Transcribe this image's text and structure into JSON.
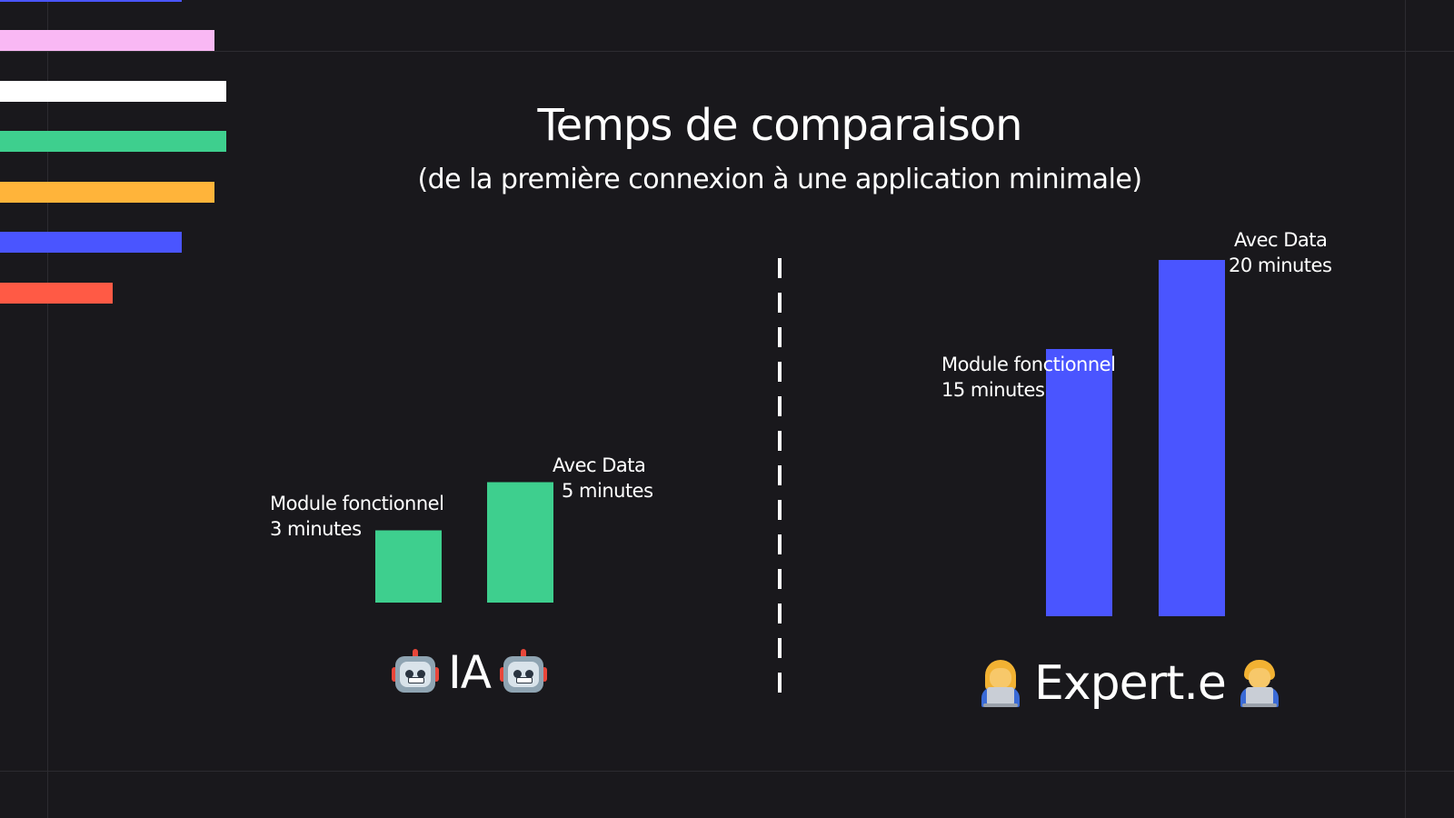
{
  "title": "Temps de comparaison",
  "subtitle": "(de la première connexion à une application minimale)",
  "colors": {
    "background": "#19181c",
    "ia_bar": "#3ecf8e",
    "expert_bar": "#4a55ff",
    "stripes": [
      "#4a55ff",
      "#f9b8f4",
      "#ffffff",
      "#3ecf8e",
      "#ffb43a",
      "#4a55ff",
      "#ff5a45"
    ]
  },
  "chart_data": [
    {
      "type": "bar",
      "group": "IA",
      "icon": "robot-icon",
      "categories": [
        "Module fonctionnel",
        "Avec Data"
      ],
      "values": [
        3,
        5
      ],
      "unit": "minutes",
      "labels": [
        [
          "Module fonctionnel",
          "3 minutes"
        ],
        [
          "Avec Data",
          "5 minutes"
        ]
      ],
      "color": "#3ecf8e"
    },
    {
      "type": "bar",
      "group": "Expert.e",
      "icon": "technologist-icon",
      "categories": [
        "Module fonctionnel",
        "Avec Data"
      ],
      "values": [
        15,
        20
      ],
      "unit": "minutes",
      "labels": [
        [
          "Module fonctionnel",
          "15 minutes"
        ],
        [
          "Avec Data",
          "20 minutes"
        ]
      ],
      "color": "#4a55ff"
    }
  ],
  "groups": {
    "ia_label": "IA",
    "expert_label": "Expert.e"
  }
}
